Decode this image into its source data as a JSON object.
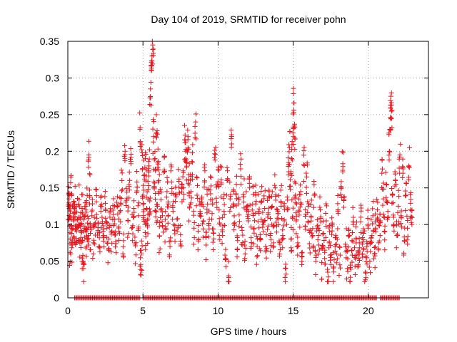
{
  "chart_data": {
    "type": "scatter",
    "title": "Day 104 of 2019, SRMTID for receiver pohn",
    "xlabel": "GPS time / hours",
    "ylabel": "SRMTID / TECUs",
    "xlim": [
      0,
      24
    ],
    "ylim": [
      0,
      0.35
    ],
    "x_ticks": [
      0,
      5,
      10,
      15,
      20
    ],
    "x_tick_labels": [
      "0",
      "5",
      "10",
      "15",
      "20"
    ],
    "y_ticks": [
      0,
      0.05,
      0.1,
      0.15,
      0.2,
      0.25,
      0.3,
      0.35
    ],
    "y_tick_labels": [
      "0",
      "0.05",
      "0.1",
      "0.15",
      "0.2",
      "0.25",
      "0.3",
      "0.35"
    ],
    "grid": true,
    "marker": "+",
    "color": "#e8141e",
    "series": [
      {
        "name": "SRMTID",
        "points": [
          [
            0.05,
            0.125
          ],
          [
            0.08,
            0.135
          ],
          [
            0.12,
            0.098
          ],
          [
            0.15,
            0.062
          ],
          [
            0.18,
            0.11
          ],
          [
            0.22,
            0.142
          ],
          [
            0.25,
            0.088
          ],
          [
            0.3,
            0.072
          ],
          [
            0.35,
            0.115
          ],
          [
            0.4,
            0.105
          ],
          [
            0.45,
            0.128
          ],
          [
            0.5,
            0.093
          ],
          [
            0.55,
            0.081
          ],
          [
            0.6,
            0.117
          ],
          [
            0.7,
            0.1
          ],
          [
            0.75,
            0.134
          ],
          [
            0.8,
            0.077
          ],
          [
            0.85,
            0.108
          ],
          [
            0.9,
            0.09
          ],
          [
            0.95,
            0.122
          ],
          [
            1.0,
            0.058
          ],
          [
            1.05,
            0.04
          ],
          [
            1.1,
            0.095
          ],
          [
            1.15,
            0.112
          ],
          [
            1.2,
            0.068
          ],
          [
            1.25,
            0.13
          ],
          [
            1.3,
            0.102
          ],
          [
            1.35,
            0.085
          ],
          [
            1.4,
            0.195
          ],
          [
            1.45,
            0.147
          ],
          [
            1.5,
            0.088
          ],
          [
            1.6,
            0.112
          ],
          [
            1.7,
            0.075
          ],
          [
            1.8,
            0.098
          ],
          [
            1.9,
            0.131
          ],
          [
            2.0,
            0.092
          ],
          [
            2.1,
            0.07
          ],
          [
            2.2,
            0.118
          ],
          [
            2.3,
            0.104
          ],
          [
            2.4,
            0.082
          ],
          [
            2.5,
            0.121
          ],
          [
            2.6,
            0.095
          ],
          [
            2.7,
            0.066
          ],
          [
            2.8,
            0.11
          ],
          [
            2.9,
            0.087
          ],
          [
            3.0,
            0.126
          ],
          [
            3.1,
            0.101
          ],
          [
            3.2,
            0.074
          ],
          [
            3.3,
            0.138
          ],
          [
            3.4,
            0.09
          ],
          [
            3.5,
            0.119
          ],
          [
            3.6,
            0.16
          ],
          [
            3.7,
            0.078
          ],
          [
            3.8,
            0.187
          ],
          [
            3.9,
            0.133
          ],
          [
            4.0,
            0.105
          ],
          [
            4.1,
            0.147
          ],
          [
            4.2,
            0.183
          ],
          [
            4.3,
            0.096
          ],
          [
            4.4,
            0.122
          ],
          [
            4.5,
            0.071
          ],
          [
            4.6,
            0.158
          ],
          [
            4.7,
            0.112
          ],
          [
            4.8,
            0.23
          ],
          [
            4.85,
            0.045
          ],
          [
            4.9,
            0.06
          ],
          [
            4.95,
            0.198
          ],
          [
            5.0,
            0.14
          ],
          [
            5.05,
            0.107
          ],
          [
            5.1,
            0.168
          ],
          [
            5.15,
            0.089
          ],
          [
            5.2,
            0.175
          ],
          [
            5.25,
            0.122
          ],
          [
            5.3,
            0.099
          ],
          [
            5.35,
            0.148
          ],
          [
            5.4,
            0.18
          ],
          [
            5.45,
            0.113
          ],
          [
            5.5,
            0.285
          ],
          [
            5.55,
            0.31
          ],
          [
            5.6,
            0.33
          ],
          [
            5.65,
            0.345
          ],
          [
            5.7,
            0.22
          ],
          [
            5.75,
            0.152
          ],
          [
            5.8,
            0.19
          ],
          [
            5.85,
            0.118
          ],
          [
            5.9,
            0.225
          ],
          [
            5.95,
            0.105
          ],
          [
            6.0,
            0.203
          ],
          [
            6.05,
            0.16
          ],
          [
            6.1,
            0.084
          ],
          [
            6.2,
            0.134
          ],
          [
            6.3,
            0.112
          ],
          [
            6.4,
            0.171
          ],
          [
            6.5,
            0.097
          ],
          [
            6.6,
            0.145
          ],
          [
            6.7,
            0.124
          ],
          [
            6.8,
            0.07
          ],
          [
            6.9,
            0.158
          ],
          [
            7.0,
            0.118
          ],
          [
            7.1,
            0.092
          ],
          [
            7.2,
            0.138
          ],
          [
            7.3,
            0.108
          ],
          [
            7.4,
            0.162
          ],
          [
            7.5,
            0.086
          ],
          [
            7.6,
            0.131
          ],
          [
            7.7,
            0.15
          ],
          [
            7.8,
            0.212
          ],
          [
            7.85,
            0.2
          ],
          [
            7.9,
            0.178
          ],
          [
            8.0,
            0.22
          ],
          [
            8.05,
            0.168
          ],
          [
            8.1,
            0.124
          ],
          [
            8.2,
            0.145
          ],
          [
            8.3,
            0.185
          ],
          [
            8.4,
            0.095
          ],
          [
            8.5,
            0.24
          ],
          [
            8.6,
            0.14
          ],
          [
            8.7,
            0.08
          ],
          [
            8.8,
            0.118
          ],
          [
            8.9,
            0.135
          ],
          [
            9.0,
            0.105
          ],
          [
            9.1,
            0.158
          ],
          [
            9.2,
            0.072
          ],
          [
            9.3,
            0.128
          ],
          [
            9.4,
            0.094
          ],
          [
            9.5,
            0.142
          ],
          [
            9.6,
            0.115
          ],
          [
            9.7,
            0.088
          ],
          [
            9.8,
            0.188
          ],
          [
            9.9,
            0.13
          ],
          [
            10.0,
            0.175
          ],
          [
            10.1,
            0.102
          ],
          [
            10.2,
            0.155
          ],
          [
            10.3,
            0.085
          ],
          [
            10.4,
            0.118
          ],
          [
            10.5,
            0.066
          ],
          [
            10.6,
            0.16
          ],
          [
            10.7,
            0.03
          ],
          [
            10.8,
            0.135
          ],
          [
            10.9,
            0.21
          ],
          [
            11.0,
            0.125
          ],
          [
            11.1,
            0.099
          ],
          [
            11.2,
            0.142
          ],
          [
            11.3,
            0.078
          ],
          [
            11.4,
            0.113
          ],
          [
            11.5,
            0.176
          ],
          [
            11.6,
            0.092
          ],
          [
            11.7,
            0.138
          ],
          [
            11.8,
            0.06
          ],
          [
            11.9,
            0.121
          ],
          [
            12.0,
            0.105
          ],
          [
            12.1,
            0.15
          ],
          [
            12.2,
            0.082
          ],
          [
            12.3,
            0.128
          ],
          [
            12.4,
            0.095
          ],
          [
            12.5,
            0.14
          ],
          [
            12.6,
            0.07
          ],
          [
            12.7,
            0.118
          ],
          [
            12.8,
            0.086
          ],
          [
            12.9,
            0.132
          ],
          [
            13.0,
            0.1
          ],
          [
            13.1,
            0.122
          ],
          [
            13.2,
            0.065
          ],
          [
            13.3,
            0.11
          ],
          [
            13.4,
            0.145
          ],
          [
            13.5,
            0.088
          ],
          [
            13.6,
            0.125
          ],
          [
            13.7,
            0.075
          ],
          [
            13.8,
            0.15
          ],
          [
            13.9,
            0.098
          ],
          [
            14.0,
            0.115
          ],
          [
            14.1,
            0.06
          ],
          [
            14.2,
            0.13
          ],
          [
            14.3,
            0.085
          ],
          [
            14.4,
            0.105
          ],
          [
            14.5,
            0.04
          ],
          [
            14.6,
            0.12
          ],
          [
            14.7,
            0.172
          ],
          [
            14.75,
            0.205
          ],
          [
            14.8,
            0.148
          ],
          [
            14.85,
            0.08
          ],
          [
            14.9,
            0.19
          ],
          [
            14.95,
            0.11
          ],
          [
            15.0,
            0.232
          ],
          [
            15.05,
            0.266
          ],
          [
            15.1,
            0.218
          ],
          [
            15.15,
            0.14
          ],
          [
            15.2,
            0.105
          ],
          [
            15.3,
            0.075
          ],
          [
            15.4,
            0.118
          ],
          [
            15.5,
            0.145
          ],
          [
            15.6,
            0.062
          ],
          [
            15.7,
            0.182
          ],
          [
            15.8,
            0.098
          ],
          [
            15.9,
            0.165
          ],
          [
            16.0,
            0.125
          ],
          [
            16.1,
            0.068
          ],
          [
            16.2,
            0.11
          ],
          [
            16.3,
            0.085
          ],
          [
            16.4,
            0.14
          ],
          [
            16.5,
            0.055
          ],
          [
            16.6,
            0.098
          ],
          [
            16.7,
            0.072
          ],
          [
            16.8,
            0.12
          ],
          [
            16.9,
            0.048
          ],
          [
            17.0,
            0.088
          ],
          [
            17.1,
            0.065
          ],
          [
            17.2,
            0.105
          ],
          [
            17.3,
            0.035
          ],
          [
            17.4,
            0.075
          ],
          [
            17.5,
            0.055
          ],
          [
            17.6,
            0.098
          ],
          [
            17.7,
            0.042
          ],
          [
            17.8,
            0.082
          ],
          [
            17.9,
            0.06
          ],
          [
            18.0,
            0.115
          ],
          [
            18.1,
            0.045
          ],
          [
            18.2,
            0.15
          ],
          [
            18.3,
            0.183
          ],
          [
            18.4,
            0.138
          ],
          [
            18.5,
            0.07
          ],
          [
            18.6,
            0.04
          ],
          [
            18.7,
            0.092
          ],
          [
            18.8,
            0.028
          ],
          [
            18.9,
            0.065
          ],
          [
            19.0,
            0.1
          ],
          [
            19.1,
            0.055
          ],
          [
            19.2,
            0.08
          ],
          [
            19.3,
            0.042
          ],
          [
            19.4,
            0.075
          ],
          [
            19.5,
            0.11
          ],
          [
            19.6,
            0.06
          ],
          [
            19.7,
            0.088
          ],
          [
            19.8,
            0.035
          ],
          [
            19.9,
            0.07
          ],
          [
            20.0,
            0.095
          ],
          [
            20.1,
            0.05
          ],
          [
            20.2,
            0.082
          ],
          [
            20.3,
            0.112
          ],
          [
            20.4,
            0.06
          ],
          [
            20.5,
            0.09
          ],
          [
            20.6,
            0.12
          ],
          [
            20.7,
            0.075
          ],
          [
            20.8,
            0.105
          ],
          [
            20.9,
            0.17
          ],
          [
            21.0,
            0.135
          ],
          [
            21.1,
            0.09
          ],
          [
            21.2,
            0.155
          ],
          [
            21.3,
            0.118
          ],
          [
            21.4,
            0.2
          ],
          [
            21.45,
            0.23
          ],
          [
            21.5,
            0.275
          ],
          [
            21.55,
            0.245
          ],
          [
            21.6,
            0.14
          ],
          [
            21.7,
            0.1
          ],
          [
            21.8,
            0.16
          ],
          [
            21.9,
            0.085
          ],
          [
            22.0,
            0.125
          ],
          [
            22.1,
            0.195
          ],
          [
            22.2,
            0.11
          ],
          [
            22.3,
            0.17
          ],
          [
            22.4,
            0.078
          ],
          [
            22.5,
            0.14
          ],
          [
            22.6,
            0.095
          ],
          [
            22.7,
            0.18
          ],
          [
            22.8,
            0.12
          ],
          [
            22.9,
            0.1
          ]
        ],
        "zero_x_ranges": [
          [
            0.45,
            4.85
          ],
          [
            5.0,
            20.6
          ],
          [
            20.8,
            22.1
          ]
        ]
      }
    ]
  }
}
